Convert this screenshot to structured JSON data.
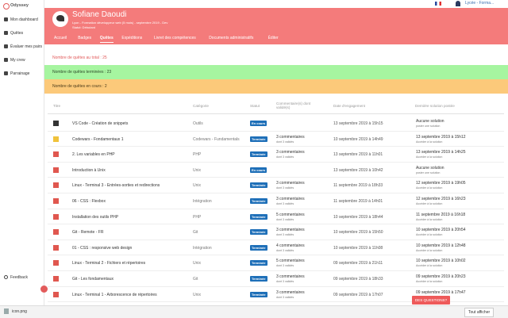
{
  "browser": {
    "account": "Lycée - Forma..."
  },
  "sidebar": {
    "brand": "Odyssey",
    "items": [
      "Mon dashboard",
      "Quêtes",
      "Évaluer mes pairs",
      "My crew",
      "Parrainage"
    ],
    "feedback": "Feedback"
  },
  "profile": {
    "name": "Sofiane Daoudi",
    "subtitle": "Lyon - Formation développeur web (5 mois) - septembre 2019 - Dev",
    "status": "Statut: Débutant",
    "tabs": [
      "Accueil",
      "Badges",
      "Quêtes",
      "Expéditions",
      "Livret des compétences",
      "Documents administratifs",
      "Éditer"
    ],
    "active_tab": 2
  },
  "stats": [
    {
      "text": "Nombre de quêtes au total : 25",
      "color": "#ffffff",
      "text_color": "#e25b5b"
    },
    {
      "text": "Nombre de quêtes terminées : 23",
      "color": "#a6f5a0",
      "text_color": "#2d4a2a"
    },
    {
      "text": "Nombre de quêtes en cours : 2",
      "color": "#fcc97a",
      "text_color": "#4a3a1a"
    }
  ],
  "table": {
    "headers": [
      "Titre",
      "Catégorie",
      "Statut",
      "Commentaire(s) dont validé(s)",
      "Date d'engagement",
      "Dernière solution postée"
    ],
    "rows": [
      {
        "icon_color": "#333333",
        "title": "VS Code - Création de snippets",
        "category": "Outils",
        "status": "En cours",
        "date": "13 septembre 2019 à 15h15",
        "last": "Aucune solution",
        "last_link": "poster une solution"
      },
      {
        "icon_color": "#f0c23b",
        "title": "Codewars - Fondamentaux 1",
        "category": "Codewars - Fundamentals",
        "status": "Terminée",
        "comments": "3 commentaires",
        "validated": "dont 3 validés",
        "date": "10 septembre 2019 à 14h49",
        "last": "13 septembre 2019 à 15h12",
        "last_link": "Accéder à la solution"
      },
      {
        "icon_color": "#e0574f",
        "title": "2. Les variables en PHP",
        "category": "PHP",
        "status": "Terminée",
        "comments": "3 commentaires",
        "validated": "dont 3 validés",
        "date": "13 septembre 2019 à 11h01",
        "last": "13 septembre 2019 à 14h25",
        "last_link": "Accéder à la solution"
      },
      {
        "icon_color": "#e0574f",
        "title": "Introduction à Unix",
        "category": "Unix",
        "status": "En cours",
        "date": "13 septembre 2019 à 10h42",
        "last": "Aucune solution",
        "last_link": "poster une solution"
      },
      {
        "icon_color": "#e0574f",
        "title": "Linux - Terminal 3 - Entrées-sorties et redirections",
        "category": "Unix",
        "status": "Terminée",
        "comments": "3 commentaires",
        "validated": "dont 3 validés",
        "date": "11 septembre 2019 à 18h33",
        "last": "12 septembre 2019 à 19h05",
        "last_link": "Accéder à la solution"
      },
      {
        "icon_color": "#e0574f",
        "title": "06 - CSS : Flexbox",
        "category": "Intégration",
        "status": "Terminée",
        "comments": "3 commentaires",
        "validated": "dont 3 validés",
        "date": "11 septembre 2019 à 14h01",
        "last": "12 septembre 2019 à 16h23",
        "last_link": "Accéder à la solution"
      },
      {
        "icon_color": "#e0574f",
        "title": "Installation des outils PHP",
        "category": "PHP",
        "status": "Terminée",
        "comments": "5 commentaires",
        "validated": "dont 3 validés",
        "date": "10 septembre 2019 à 18h44",
        "last": "11 septembre 2019 à 16h18",
        "last_link": "Accéder à la solution"
      },
      {
        "icon_color": "#e0574f",
        "title": "Git - Remote - FR",
        "category": "Git",
        "status": "Terminée",
        "comments": "3 commentaires",
        "validated": "dont 3 validés",
        "date": "10 septembre 2019 à 15h50",
        "last": "10 septembre 2019 à 20h54",
        "last_link": "Accéder à la solution"
      },
      {
        "icon_color": "#e0574f",
        "title": "01 - CSS : responsive web design",
        "category": "Intégration",
        "status": "Terminée",
        "comments": "4 commentaires",
        "validated": "dont 3 validés",
        "date": "10 septembre 2019 à 11h08",
        "last": "10 septembre 2019 à 12h48",
        "last_link": "Accéder à la solution"
      },
      {
        "icon_color": "#e0574f",
        "title": "Linux - Terminal 2 - Fichiers et répertoires",
        "category": "Unix",
        "status": "Terminée",
        "comments": "5 commentaires",
        "validated": "dont 3 validés",
        "date": "09 septembre 2019 à 21h11",
        "last": "10 septembre 2019 à 10h02",
        "last_link": "Accéder à la solution"
      },
      {
        "icon_color": "#e0574f",
        "title": "Git - Les fondamentaux",
        "category": "Git",
        "status": "Terminée",
        "comments": "3 commentaires",
        "validated": "dont 3 validés",
        "date": "09 septembre 2019 à 18h33",
        "last": "09 septembre 2019 à 20h23",
        "last_link": "Accéder à la solution"
      },
      {
        "icon_color": "#e0574f",
        "title": "Linux - Terminal 1 - Arborescence de répertoires",
        "category": "Unix",
        "status": "Terminée",
        "comments": "3 commentaires",
        "validated": "dont 3 validés",
        "date": "09 septembre 2019 à 17h07",
        "last": "09 septembre 2019 à 17h47",
        "last_link": "Accéder à la solution"
      }
    ]
  },
  "help_button": "DES QUESTIONS?",
  "download": {
    "file": "icon.png",
    "show_all": "Tout afficher"
  }
}
